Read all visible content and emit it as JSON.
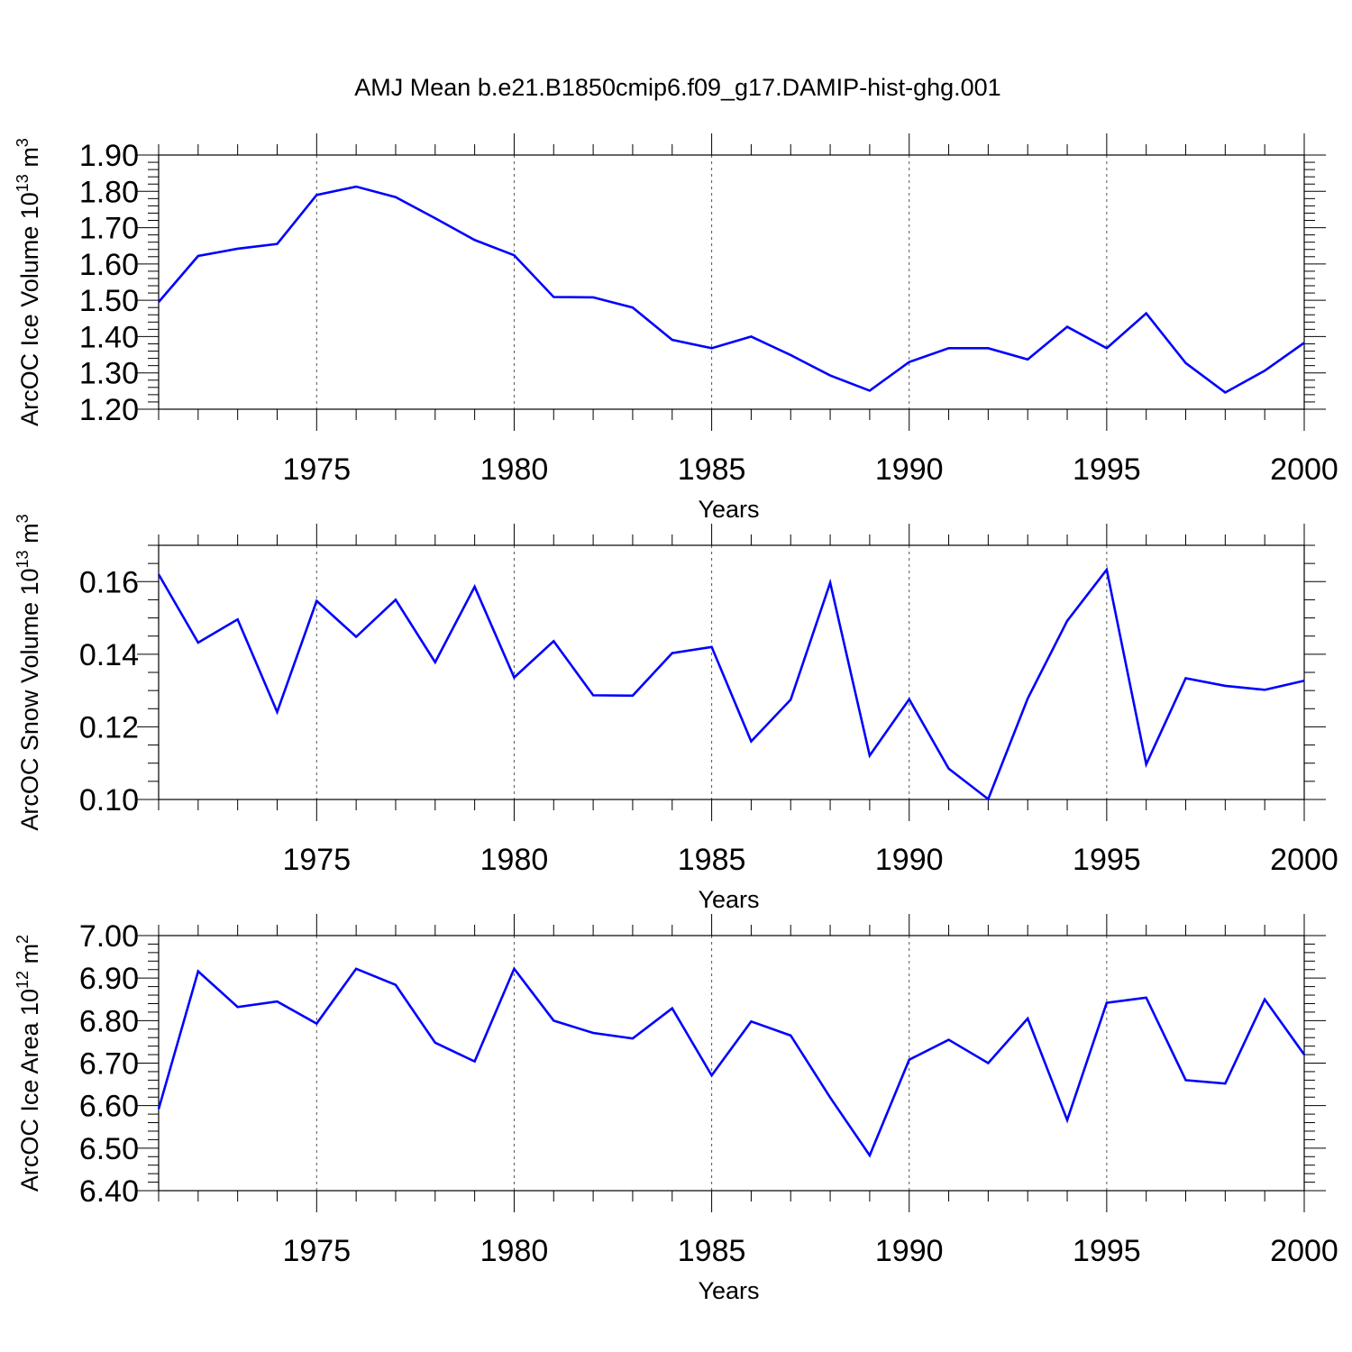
{
  "title": "AMJ Mean b.e21.B1850cmip6.f09_g17.DAMIP-hist-ghg.001",
  "line_color": "#0000ff",
  "chart_data": [
    {
      "type": "line",
      "title": "",
      "xlabel": "Years",
      "ylabel_main": "ArcOC Ice Volume 10",
      "ylabel_exp": "13",
      "ylabel_unit": " m",
      "ylabel_unit_exp": "3",
      "xlim": [
        1971,
        2000
      ],
      "ylim": [
        1.2,
        1.9
      ],
      "x_ticks": [
        1975,
        1980,
        1985,
        1990,
        1995,
        2000
      ],
      "y_ticks": [
        1.2,
        1.3,
        1.4,
        1.5,
        1.6,
        1.7,
        1.8,
        1.9
      ],
      "y_tick_labels": [
        "1.20",
        "1.30",
        "1.40",
        "1.50",
        "1.60",
        "1.70",
        "1.80",
        "1.90"
      ],
      "x_minor_step": 1,
      "y_minor_step": 0.02,
      "x": [
        1971,
        1972,
        1973,
        1974,
        1975,
        1976,
        1977,
        1978,
        1979,
        1980,
        1981,
        1982,
        1983,
        1984,
        1985,
        1986,
        1987,
        1988,
        1989,
        1990,
        1991,
        1992,
        1993,
        1994,
        1995,
        1996,
        1997,
        1998,
        1999,
        2000
      ],
      "series": [
        {
          "name": "ArcOC Ice Volume",
          "values": [
            1.495,
            1.622,
            1.642,
            1.655,
            1.79,
            1.813,
            1.784,
            1.726,
            1.666,
            1.624,
            1.509,
            1.508,
            1.48,
            1.391,
            1.368,
            1.4,
            1.349,
            1.293,
            1.251,
            1.33,
            1.368,
            1.368,
            1.337,
            1.427,
            1.368,
            1.464,
            1.327,
            1.246,
            1.306,
            1.383
          ]
        }
      ]
    },
    {
      "type": "line",
      "title": "",
      "xlabel": "Years",
      "ylabel_main": "ArcOC Snow Volume 10",
      "ylabel_exp": "13",
      "ylabel_unit": " m",
      "ylabel_unit_exp": "3",
      "xlim": [
        1971,
        2000
      ],
      "ylim": [
        0.1,
        0.17
      ],
      "x_ticks": [
        1975,
        1980,
        1985,
        1990,
        1995,
        2000
      ],
      "y_ticks": [
        0.1,
        0.12,
        0.14,
        0.16
      ],
      "y_tick_labels": [
        "0.10",
        "0.12",
        "0.14",
        "0.16"
      ],
      "x_minor_step": 1,
      "y_minor_step": 0.005,
      "x": [
        1971,
        1972,
        1973,
        1974,
        1975,
        1976,
        1977,
        1978,
        1979,
        1980,
        1981,
        1982,
        1983,
        1984,
        1985,
        1986,
        1987,
        1988,
        1989,
        1990,
        1991,
        1992,
        1993,
        1994,
        1995,
        1996,
        1997,
        1998,
        1999,
        2000
      ],
      "series": [
        {
          "name": "ArcOC Snow Volume",
          "values": [
            0.162,
            0.1432,
            0.1496,
            0.1241,
            0.1547,
            0.1448,
            0.155,
            0.1378,
            0.1586,
            0.1336,
            0.1436,
            0.1287,
            0.1286,
            0.1403,
            0.142,
            0.116,
            0.1275,
            0.1597,
            0.1121,
            0.1276,
            0.1085,
            0.1001,
            0.1278,
            0.1492,
            0.1633,
            0.1097,
            0.1334,
            0.1313,
            0.1302,
            0.1327
          ]
        }
      ]
    },
    {
      "type": "line",
      "title": "",
      "xlabel": "Years",
      "ylabel_main": "ArcOC Ice Area 10",
      "ylabel_exp": "12",
      "ylabel_unit": " m",
      "ylabel_unit_exp": "2",
      "xlim": [
        1971,
        2000
      ],
      "ylim": [
        6.4,
        7.0
      ],
      "x_ticks": [
        1975,
        1980,
        1985,
        1990,
        1995,
        2000
      ],
      "y_ticks": [
        6.4,
        6.5,
        6.6,
        6.7,
        6.8,
        6.9,
        7.0
      ],
      "y_tick_labels": [
        "6.40",
        "6.50",
        "6.60",
        "6.70",
        "6.80",
        "6.90",
        "7.00"
      ],
      "x_minor_step": 1,
      "y_minor_step": 0.02,
      "x": [
        1971,
        1972,
        1973,
        1974,
        1975,
        1976,
        1977,
        1978,
        1979,
        1980,
        1981,
        1982,
        1983,
        1984,
        1985,
        1986,
        1987,
        1988,
        1989,
        1990,
        1991,
        1992,
        1993,
        1994,
        1995,
        1996,
        1997,
        1998,
        1999,
        2000
      ],
      "series": [
        {
          "name": "ArcOC Ice Area",
          "values": [
            6.592,
            6.916,
            6.832,
            6.845,
            6.793,
            6.922,
            6.884,
            6.748,
            6.704,
            6.922,
            6.8,
            6.771,
            6.758,
            6.829,
            6.671,
            6.798,
            6.765,
            6.619,
            6.483,
            6.708,
            6.755,
            6.7,
            6.805,
            6.566,
            6.842,
            6.854,
            6.66,
            6.652,
            6.85,
            6.72
          ]
        }
      ]
    }
  ]
}
